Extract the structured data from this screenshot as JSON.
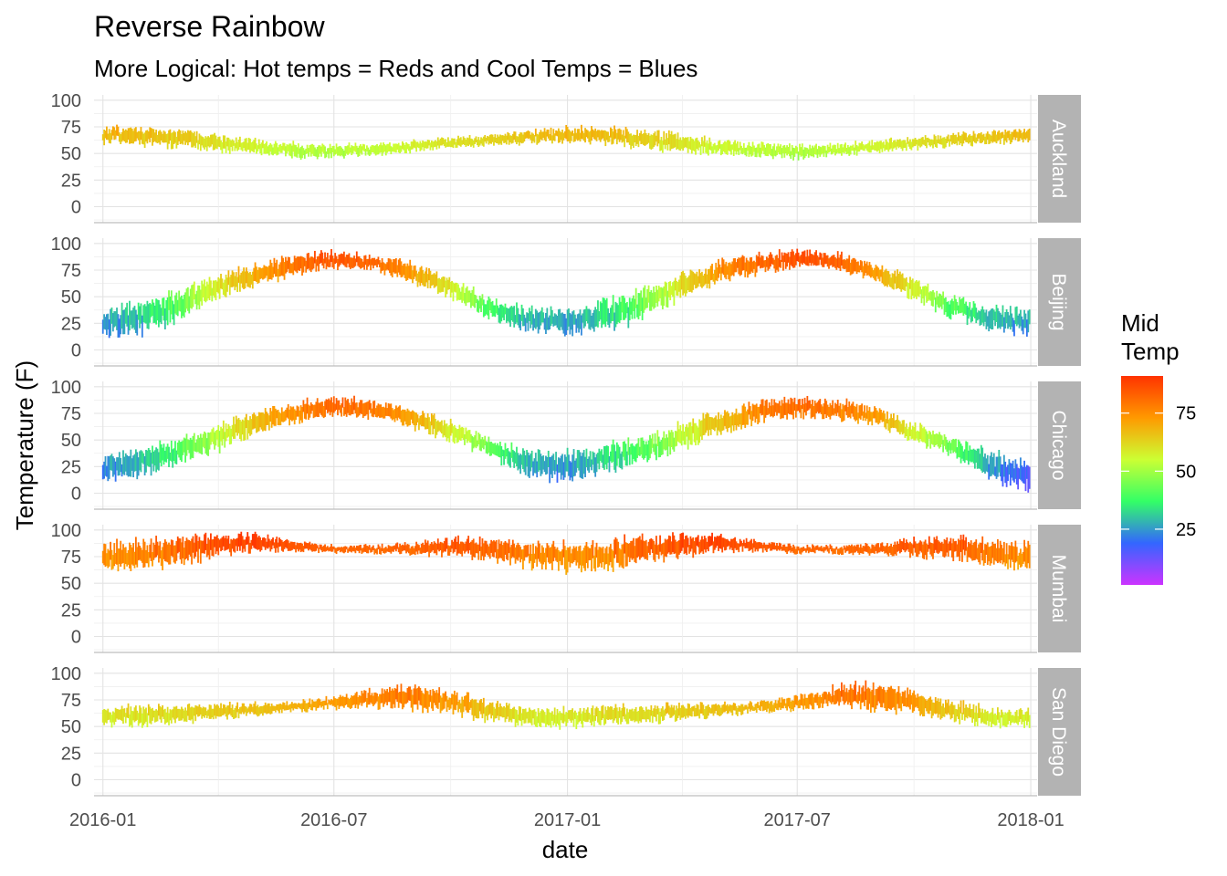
{
  "chart_data": {
    "type": "line",
    "title": "Reverse Rainbow",
    "subtitle": "More Logical:  Hot temps = Reds and Cool Temps = Blues",
    "xlabel": "date",
    "ylabel": "Temperature (F)",
    "x_range": [
      "2015-12-25",
      "2018-01-06"
    ],
    "y_range": [
      -15,
      105
    ],
    "x_ticks": [
      "2016-01",
      "2016-07",
      "2017-01",
      "2017-07",
      "2018-01"
    ],
    "y_ticks": [
      0,
      25,
      50,
      75,
      100
    ],
    "grid": true,
    "facets": [
      {
        "name": "Auckland",
        "low": [
          60,
          58,
          55,
          52,
          49,
          46,
          45,
          48,
          51,
          55,
          57,
          59,
          60,
          58,
          55,
          51,
          48,
          46,
          45,
          47,
          50,
          54,
          57,
          59,
          60
        ],
        "high": [
          75,
          75,
          73,
          68,
          63,
          60,
          58,
          60,
          62,
          65,
          68,
          72,
          75,
          75,
          72,
          68,
          63,
          60,
          58,
          60,
          62,
          65,
          69,
          72,
          74
        ]
      },
      {
        "name": "Beijing",
        "low": [
          12,
          15,
          28,
          48,
          60,
          70,
          76,
          75,
          63,
          48,
          28,
          18,
          14,
          17,
          30,
          48,
          62,
          72,
          78,
          76,
          64,
          48,
          30,
          18,
          14
        ],
        "high": [
          38,
          45,
          58,
          70,
          82,
          90,
          93,
          90,
          82,
          68,
          50,
          40,
          38,
          46,
          58,
          72,
          84,
          92,
          94,
          92,
          82,
          68,
          50,
          40,
          38
        ]
      },
      {
        "name": "Chicago",
        "low": [
          10,
          15,
          28,
          40,
          55,
          66,
          72,
          70,
          62,
          48,
          35,
          15,
          10,
          18,
          30,
          40,
          55,
          66,
          72,
          70,
          64,
          48,
          35,
          12,
          0
        ],
        "high": [
          35,
          42,
          52,
          65,
          78,
          86,
          90,
          88,
          80,
          68,
          52,
          40,
          38,
          45,
          52,
          66,
          78,
          88,
          90,
          88,
          82,
          66,
          52,
          40,
          30
        ]
      },
      {
        "name": "Mumbai",
        "low": [
          62,
          62,
          68,
          75,
          80,
          80,
          78,
          78,
          77,
          75,
          72,
          65,
          62,
          62,
          68,
          75,
          80,
          80,
          78,
          78,
          77,
          75,
          72,
          65,
          62
        ],
        "high": [
          88,
          90,
          94,
          96,
          96,
          90,
          86,
          86,
          88,
          92,
          94,
          90,
          88,
          90,
          94,
          96,
          96,
          90,
          86,
          86,
          88,
          92,
          94,
          90,
          88
        ]
      },
      {
        "name": "San Diego",
        "low": [
          50,
          51,
          53,
          56,
          60,
          63,
          66,
          68,
          66,
          62,
          55,
          50,
          49,
          51,
          53,
          56,
          60,
          63,
          66,
          68,
          66,
          62,
          55,
          50,
          49
        ],
        "high": [
          68,
          70,
          70,
          72,
          72,
          74,
          78,
          85,
          90,
          84,
          75,
          68,
          67,
          70,
          70,
          72,
          72,
          74,
          80,
          88,
          92,
          84,
          74,
          68,
          66
        ]
      }
    ],
    "legend": {
      "title": "Mid\nTemp",
      "range": [
        1,
        91
      ],
      "ticks": [
        25,
        50,
        75
      ],
      "colors": [
        "#cc33ff",
        "#3366ff",
        "#33ff66",
        "#ccff33",
        "#ff9900",
        "#ff3300"
      ],
      "placement": "right"
    }
  }
}
